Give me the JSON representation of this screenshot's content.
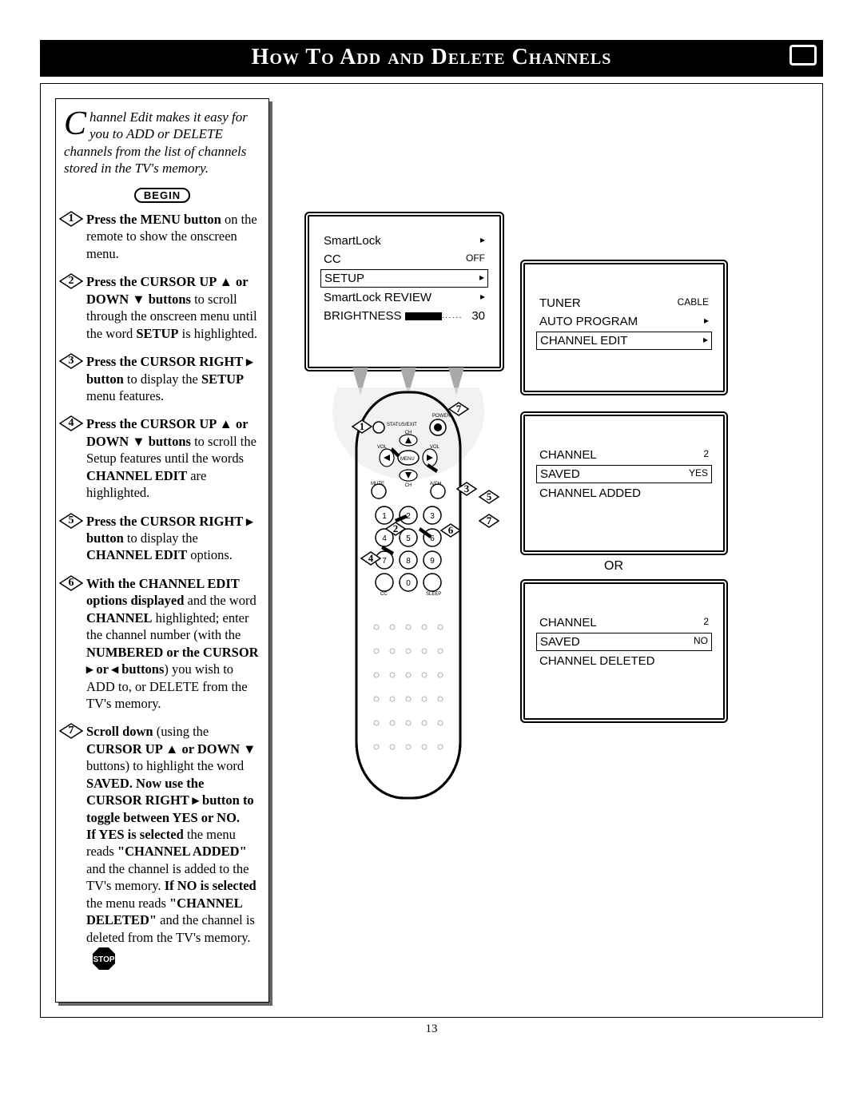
{
  "title": "How To Add and Delete Channels",
  "intro_dropcap": "C",
  "intro_text": "hannel Edit makes it easy for you to ADD or DELETE channels from the list of channels stored in the TV's memory.",
  "begin_label": "BEGIN",
  "stop_label": "STOP",
  "page_number": "13",
  "steps": [
    {
      "bold": "Press the MENU button",
      "rest": " on the remote to show the onscreen menu."
    },
    {
      "bold": "Press the CURSOR UP ▲ or DOWN ▼ buttons",
      "rest": " to scroll through the onscreen menu until the word ",
      "bold2": "SETUP",
      "rest2": " is highlighted."
    },
    {
      "bold": "Press the CURSOR RIGHT ▸ button",
      "rest": " to display the ",
      "bold2": "SETUP",
      "rest2": " menu features."
    },
    {
      "bold": "Press the CURSOR UP ▲ or DOWN ▼ buttons",
      "rest": " to scroll the Setup features until the words ",
      "bold2": "CHANNEL EDIT",
      "rest2": " are highlighted."
    },
    {
      "bold": "Press the CURSOR RIGHT ▸ button",
      "rest": " to display the ",
      "bold2": "CHANNEL EDIT",
      "rest2": " options."
    },
    {
      "bold": "With the CHANNEL EDIT options displayed",
      "rest": " and the word ",
      "bold2": "CHANNEL",
      "rest2": " highlighted; enter the channel number (with the ",
      "bold3": "NUMBERED or the CURSOR ▸ or ◂ buttons",
      "rest3": ") you wish to ADD to, or DELETE from the TV's memory."
    },
    {
      "bold": "Scroll down",
      "rest": " (using the ",
      "bold2": "CURSOR UP ▲ or DOWN ▼",
      "rest2": " buttons) to highlight the word ",
      "bold3": "SAVED. Now use the CURSOR RIGHT ▸ button to toggle between YES or NO.",
      "rest3": "",
      "extra": "If YES is selected the menu reads \"CHANNEL ADDED\" and the channel is added to the TV's memory. If NO is selected the menu reads \"CHANNEL DELETED\" and the channel is deleted from the TV's memory."
    }
  ],
  "osd1": {
    "rows": [
      {
        "l": "SmartLock",
        "r": "▸"
      },
      {
        "l": "CC",
        "r": "OFF"
      },
      {
        "l": "SETUP",
        "r": "▸",
        "boxed": true
      },
      {
        "l": "SmartLock REVIEW",
        "r": "▸"
      },
      {
        "l": "BRIGHTNESS",
        "r": "30",
        "bar": true
      }
    ]
  },
  "osd2": {
    "rows": [
      {
        "l": "TUNER",
        "r": "CABLE"
      },
      {
        "l": "AUTO PROGRAM",
        "r": "▸"
      },
      {
        "l": "CHANNEL EDIT",
        "r": "▸",
        "boxed": true
      }
    ]
  },
  "osd3": {
    "rows": [
      {
        "l": "CHANNEL",
        "r": "2"
      },
      {
        "l": "SAVED",
        "r": "YES",
        "boxed": true
      },
      {
        "l": "CHANNEL ADDED",
        "r": ""
      }
    ]
  },
  "osd4": {
    "rows": [
      {
        "l": "CHANNEL",
        "r": "2"
      },
      {
        "l": "SAVED",
        "r": "NO",
        "boxed": true
      },
      {
        "l": "CHANNEL DELETED",
        "r": ""
      }
    ]
  },
  "or_label": "OR",
  "remote_labels": {
    "status": "STATUS/EXIT",
    "power": "POWER",
    "ch": "CH",
    "vol": "VOL",
    "menu": "MENU",
    "mute": "MUTE",
    "ach": "A/CH",
    "cc": "CC",
    "sleep": "SLEEP"
  },
  "callouts": [
    "1",
    "7",
    "3",
    "5",
    "2",
    "6",
    "4",
    "7"
  ]
}
